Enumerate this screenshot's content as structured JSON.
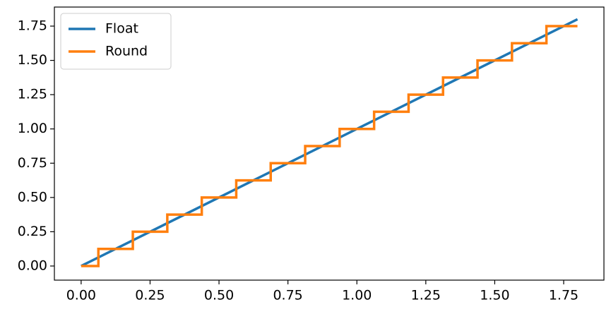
{
  "chart_data": {
    "type": "line",
    "series": [
      {
        "name": "Float",
        "color": "#1f77b4",
        "x": [
          0,
          1.8
        ],
        "values": [
          0,
          1.8
        ]
      },
      {
        "name": "Round",
        "color": "#ff7f0e",
        "x": [
          0,
          0.0625,
          0.0625,
          0.1875,
          0.1875,
          0.3125,
          0.3125,
          0.4375,
          0.4375,
          0.5625,
          0.5625,
          0.6875,
          0.6875,
          0.8125,
          0.8125,
          0.9375,
          0.9375,
          1.0625,
          1.0625,
          1.1875,
          1.1875,
          1.3125,
          1.3125,
          1.4375,
          1.4375,
          1.5625,
          1.5625,
          1.6875,
          1.6875,
          1.8
        ],
        "values": [
          0,
          0,
          0.125,
          0.125,
          0.25,
          0.25,
          0.375,
          0.375,
          0.5,
          0.5,
          0.625,
          0.625,
          0.75,
          0.75,
          0.875,
          0.875,
          1,
          1,
          1.125,
          1.125,
          1.25,
          1.25,
          1.375,
          1.375,
          1.5,
          1.5,
          1.625,
          1.625,
          1.75,
          1.75
        ]
      }
    ],
    "xlim": [
      -0.097,
      1.896
    ],
    "ylim": [
      -0.103,
      1.889
    ],
    "xticks": [
      {
        "value": 0,
        "label": "0.00"
      },
      {
        "value": 0.25,
        "label": "0.25"
      },
      {
        "value": 0.5,
        "label": "0.50"
      },
      {
        "value": 0.75,
        "label": "0.75"
      },
      {
        "value": 1,
        "label": "1.00"
      },
      {
        "value": 1.25,
        "label": "1.25"
      },
      {
        "value": 1.5,
        "label": "1.50"
      },
      {
        "value": 1.75,
        "label": "1.75"
      }
    ],
    "yticks": [
      {
        "value": 0,
        "label": "0.00"
      },
      {
        "value": 0.25,
        "label": "0.25"
      },
      {
        "value": 0.5,
        "label": "0.50"
      },
      {
        "value": 0.75,
        "label": "0.75"
      },
      {
        "value": 1,
        "label": "1.00"
      },
      {
        "value": 1.25,
        "label": "1.25"
      },
      {
        "value": 1.5,
        "label": "1.50"
      },
      {
        "value": 1.75,
        "label": "1.75"
      }
    ],
    "grid": false,
    "legend": "upper-left"
  }
}
